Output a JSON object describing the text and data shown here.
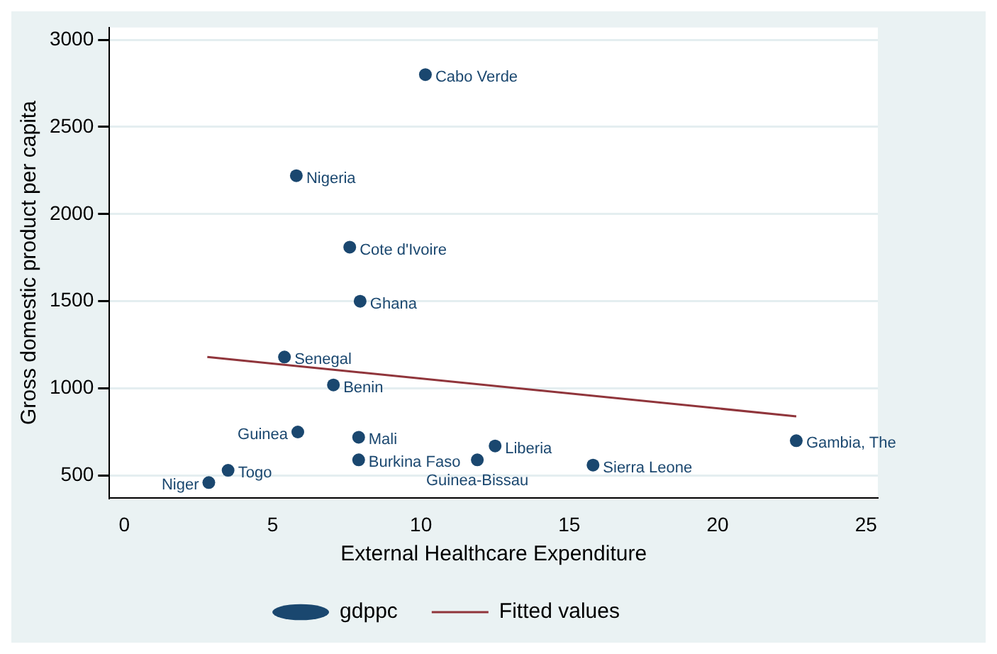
{
  "chart_data": {
    "type": "scatter",
    "xlabel": "External Healthcare Expenditure",
    "ylabel": "Gross domestic product per capita",
    "xlim": [
      -0.5,
      25.4
    ],
    "ylim": [
      370,
      3070
    ],
    "xticks": [
      0,
      5,
      10,
      15,
      20,
      25
    ],
    "yticks": [
      500,
      1000,
      1500,
      2000,
      2500,
      3000
    ],
    "grid": "y",
    "legend": "bottom",
    "series": [
      {
        "name": "gdppc",
        "marker": "circle",
        "color": "#1a476f",
        "x": [
          10.15,
          5.8,
          7.6,
          7.95,
          5.4,
          7.05,
          5.85,
          7.9,
          7.9,
          11.9,
          12.5,
          15.8,
          22.65,
          3.5,
          2.85
        ],
        "values": [
          2800,
          2220,
          1810,
          1500,
          1180,
          1020,
          750,
          720,
          590,
          590,
          670,
          560,
          700,
          530,
          460
        ]
      },
      {
        "name": "Fitted values",
        "type": "line",
        "marker": "none",
        "color": "#90353b",
        "x": [
          2.8,
          22.65
        ],
        "values": [
          1180,
          840
        ]
      }
    ],
    "annotations": [
      {
        "text": "Cabo Verde",
        "x": 10.15,
        "y": 2800
      },
      {
        "text": "Nigeria",
        "x": 5.8,
        "y": 2220
      },
      {
        "text": "Cote d'Ivoire",
        "x": 7.6,
        "y": 1810
      },
      {
        "text": "Ghana",
        "x": 7.95,
        "y": 1500
      },
      {
        "text": "Senegal",
        "x": 5.4,
        "y": 1180
      },
      {
        "text": "Benin",
        "x": 7.05,
        "y": 1020
      },
      {
        "text": "Guinea",
        "x": 5.85,
        "y": 750
      },
      {
        "text": "Mali",
        "x": 7.9,
        "y": 720
      },
      {
        "text": "Burkina Faso",
        "x": 7.9,
        "y": 590
      },
      {
        "text": "Guinea-Bissau",
        "x": 11.9,
        "y": 590
      },
      {
        "text": "Liberia",
        "x": 12.5,
        "y": 670
      },
      {
        "text": "Sierra Leone",
        "x": 15.8,
        "y": 560
      },
      {
        "text": "Gambia, The",
        "x": 22.65,
        "y": 700
      },
      {
        "text": "Togo",
        "x": 3.5,
        "y": 530
      },
      {
        "text": "Niger",
        "x": 2.85,
        "y": 460
      }
    ]
  }
}
